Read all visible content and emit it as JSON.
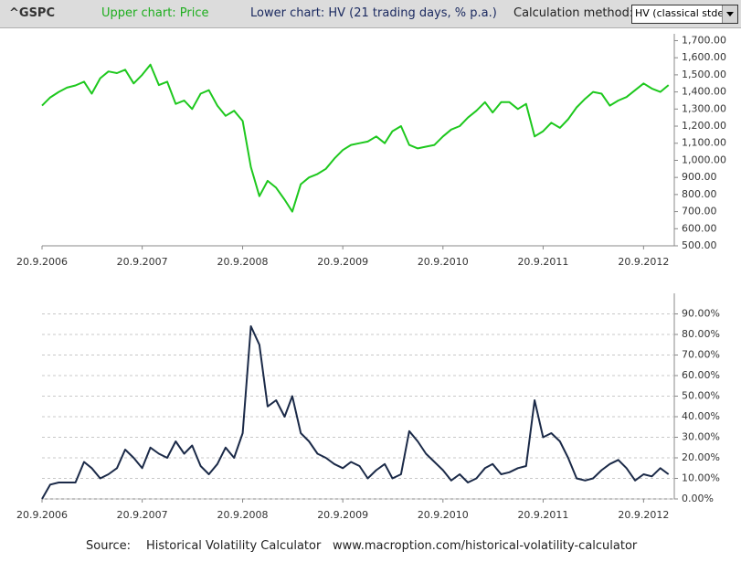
{
  "header": {
    "symbol": "^GSPC",
    "upper": "Upper chart: Price",
    "lower": "Lower chart: HV (21 trading days, % p.a.)",
    "method_label": "Calculation method:",
    "method_value": "HV (classical stdev)"
  },
  "footer": {
    "source_label": "Source:",
    "source_name": "Historical Volatility Calculator",
    "url": "www.macroption.com/historical-volatility-calculator"
  },
  "chart_data": [
    {
      "type": "line",
      "color": "#1ec81e",
      "grid": false,
      "x": [
        "2006-09-20",
        "2006-10-20",
        "2006-11-20",
        "2006-12-20",
        "2007-01-20",
        "2007-02-20",
        "2007-03-20",
        "2007-04-20",
        "2007-05-20",
        "2007-06-20",
        "2007-07-20",
        "2007-08-20",
        "2007-09-20",
        "2007-10-20",
        "2007-11-20",
        "2007-12-20",
        "2008-01-20",
        "2008-02-20",
        "2008-03-20",
        "2008-04-20",
        "2008-05-20",
        "2008-06-20",
        "2008-07-20",
        "2008-08-20",
        "2008-09-20",
        "2008-10-20",
        "2008-11-20",
        "2008-12-20",
        "2009-01-20",
        "2009-02-20",
        "2009-03-20",
        "2009-04-20",
        "2009-05-20",
        "2009-06-20",
        "2009-07-20",
        "2009-08-20",
        "2009-09-20",
        "2009-10-20",
        "2009-11-20",
        "2009-12-20",
        "2010-01-20",
        "2010-02-20",
        "2010-03-20",
        "2010-04-20",
        "2010-05-20",
        "2010-06-20",
        "2010-07-20",
        "2010-08-20",
        "2010-09-20",
        "2010-10-20",
        "2010-11-20",
        "2010-12-20",
        "2011-01-20",
        "2011-02-20",
        "2011-03-20",
        "2011-04-20",
        "2011-05-20",
        "2011-06-20",
        "2011-07-20",
        "2011-08-20",
        "2011-09-20",
        "2011-10-20",
        "2011-11-20",
        "2011-12-20",
        "2012-01-20",
        "2012-02-20",
        "2012-03-20",
        "2012-04-20",
        "2012-05-20",
        "2012-06-20",
        "2012-07-20",
        "2012-08-20",
        "2012-09-20",
        "2012-10-20",
        "2012-11-20",
        "2012-12-20"
      ],
      "values": [
        1320,
        1368,
        1400,
        1425,
        1438,
        1460,
        1390,
        1480,
        1520,
        1510,
        1530,
        1450,
        1500,
        1560,
        1440,
        1460,
        1330,
        1350,
        1300,
        1390,
        1410,
        1320,
        1260,
        1290,
        1230,
        960,
        790,
        880,
        840,
        770,
        700,
        860,
        900,
        920,
        950,
        1010,
        1060,
        1090,
        1100,
        1110,
        1140,
        1100,
        1170,
        1200,
        1090,
        1070,
        1080,
        1090,
        1140,
        1180,
        1200,
        1250,
        1290,
        1340,
        1280,
        1340,
        1340,
        1300,
        1330,
        1140,
        1170,
        1220,
        1190,
        1240,
        1310,
        1360,
        1400,
        1390,
        1320,
        1350,
        1370,
        1410,
        1450,
        1420,
        1400,
        1440
      ],
      "xlim": [
        "2006-09-20",
        "2013-01-10"
      ],
      "xticks": [
        {
          "value": "2006-09-20",
          "label": "20.9.2006"
        },
        {
          "value": "2007-09-20",
          "label": "20.9.2007"
        },
        {
          "value": "2008-09-20",
          "label": "20.9.2008"
        },
        {
          "value": "2009-09-20",
          "label": "20.9.2009"
        },
        {
          "value": "2010-09-20",
          "label": "20.9.2010"
        },
        {
          "value": "2011-09-20",
          "label": "20.9.2011"
        },
        {
          "value": "2012-09-20",
          "label": "20.9.2012"
        }
      ],
      "ylim": [
        500,
        1740
      ],
      "yticks": [
        {
          "value": 500,
          "label": "500.00"
        },
        {
          "value": 600,
          "label": "600.00"
        },
        {
          "value": 700,
          "label": "700.00"
        },
        {
          "value": 800,
          "label": "800.00"
        },
        {
          "value": 900,
          "label": "900.00"
        },
        {
          "value": 1000,
          "label": "1,000.00"
        },
        {
          "value": 1100,
          "label": "1,100.00"
        },
        {
          "value": 1200,
          "label": "1,200.00"
        },
        {
          "value": 1300,
          "label": "1,300.00"
        },
        {
          "value": 1400,
          "label": "1,400.00"
        },
        {
          "value": 1500,
          "label": "1,500.00"
        },
        {
          "value": 1600,
          "label": "1,600.00"
        },
        {
          "value": 1700,
          "label": "1,700.00"
        }
      ]
    },
    {
      "type": "line",
      "color": "#1b2a48",
      "grid": true,
      "x": [
        "2006-09-20",
        "2006-10-20",
        "2006-11-20",
        "2006-12-20",
        "2007-01-20",
        "2007-02-20",
        "2007-03-20",
        "2007-04-20",
        "2007-05-20",
        "2007-06-20",
        "2007-07-20",
        "2007-08-20",
        "2007-09-20",
        "2007-10-20",
        "2007-11-20",
        "2007-12-20",
        "2008-01-20",
        "2008-02-20",
        "2008-03-20",
        "2008-04-20",
        "2008-05-20",
        "2008-06-20",
        "2008-07-20",
        "2008-08-20",
        "2008-09-20",
        "2008-10-20",
        "2008-11-20",
        "2008-12-20",
        "2009-01-20",
        "2009-02-20",
        "2009-03-20",
        "2009-04-20",
        "2009-05-20",
        "2009-06-20",
        "2009-07-20",
        "2009-08-20",
        "2009-09-20",
        "2009-10-20",
        "2009-11-20",
        "2009-12-20",
        "2010-01-20",
        "2010-02-20",
        "2010-03-20",
        "2010-04-20",
        "2010-05-20",
        "2010-06-20",
        "2010-07-20",
        "2010-08-20",
        "2010-09-20",
        "2010-10-20",
        "2010-11-20",
        "2010-12-20",
        "2011-01-20",
        "2011-02-20",
        "2011-03-20",
        "2011-04-20",
        "2011-05-20",
        "2011-06-20",
        "2011-07-20",
        "2011-08-20",
        "2011-09-20",
        "2011-10-20",
        "2011-11-20",
        "2011-12-20",
        "2012-01-20",
        "2012-02-20",
        "2012-03-20",
        "2012-04-20",
        "2012-05-20",
        "2012-06-20",
        "2012-07-20",
        "2012-08-20",
        "2012-09-20",
        "2012-10-20",
        "2012-11-20",
        "2012-12-20"
      ],
      "values": [
        0,
        7,
        8,
        8,
        8,
        18,
        15,
        10,
        12,
        15,
        24,
        20,
        15,
        25,
        22,
        20,
        28,
        22,
        26,
        16,
        12,
        17,
        25,
        20,
        32,
        84,
        75,
        45,
        48,
        40,
        50,
        32,
        28,
        22,
        20,
        17,
        15,
        18,
        16,
        10,
        14,
        17,
        10,
        12,
        33,
        28,
        22,
        18,
        14,
        9,
        12,
        8,
        10,
        15,
        17,
        12,
        13,
        15,
        16,
        48,
        30,
        32,
        28,
        20,
        10,
        9,
        10,
        14,
        17,
        19,
        15,
        9,
        12,
        11,
        15,
        12
      ],
      "xlim": [
        "2006-09-20",
        "2013-01-10"
      ],
      "xticks": [
        {
          "value": "2006-09-20",
          "label": "20.9.2006"
        },
        {
          "value": "2007-09-20",
          "label": "20.9.2007"
        },
        {
          "value": "2008-09-20",
          "label": "20.9.2008"
        },
        {
          "value": "2009-09-20",
          "label": "20.9.2009"
        },
        {
          "value": "2010-09-20",
          "label": "20.9.2010"
        },
        {
          "value": "2011-09-20",
          "label": "20.9.2011"
        },
        {
          "value": "2012-09-20",
          "label": "20.9.2012"
        }
      ],
      "ylim": [
        0,
        100
      ],
      "yticks": [
        {
          "value": 0,
          "label": "0.00%"
        },
        {
          "value": 10,
          "label": "10.00%"
        },
        {
          "value": 20,
          "label": "20.00%"
        },
        {
          "value": 30,
          "label": "30.00%"
        },
        {
          "value": 40,
          "label": "40.00%"
        },
        {
          "value": 50,
          "label": "50.00%"
        },
        {
          "value": 60,
          "label": "60.00%"
        },
        {
          "value": 70,
          "label": "70.00%"
        },
        {
          "value": 80,
          "label": "80.00%"
        },
        {
          "value": 90,
          "label": "90.00%"
        }
      ]
    }
  ]
}
